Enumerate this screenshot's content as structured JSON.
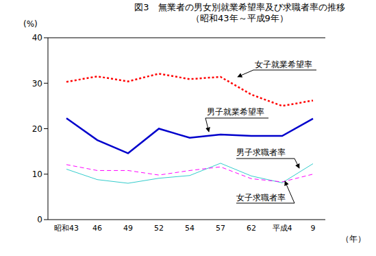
{
  "chart_data": {
    "type": "line",
    "title": "図3　無業者の男女別就業希望率及び求職者率の推移",
    "subtitle": "（昭和43年～平成9年）",
    "y_label": "(%)",
    "x_label": "（年）",
    "categories": [
      "昭和43",
      "46",
      "49",
      "52",
      "54",
      "57",
      "62",
      "平成4",
      "9"
    ],
    "series": [
      {
        "name": "女子就業希望率",
        "color": "#ff0000",
        "line_style": "dotted",
        "values": [
          30.3,
          31.5,
          30.4,
          32.1,
          30.9,
          31.4,
          27.5,
          25.0,
          26.2
        ]
      },
      {
        "name": "男子就業希望率",
        "color": "#0000cc",
        "line_style": "solid",
        "values": [
          22.3,
          17.5,
          14.6,
          20.0,
          18.0,
          18.7,
          18.4,
          18.4,
          22.2
        ]
      },
      {
        "name": "男子求職者率",
        "color": "#33cccc",
        "line_style": "solid",
        "values": [
          11.1,
          8.8,
          8.0,
          9.1,
          9.7,
          12.4,
          9.6,
          8.1,
          12.3
        ]
      },
      {
        "name": "女子求職者率",
        "color": "#ff00ff",
        "line_style": "dashed",
        "values": [
          12.1,
          10.8,
          10.8,
          9.8,
          10.8,
          11.6,
          9.0,
          8.3,
          10.0
        ]
      }
    ],
    "ylim": [
      0,
      40
    ],
    "yticks": [
      0,
      10,
      20,
      30,
      40
    ],
    "grid": false
  }
}
